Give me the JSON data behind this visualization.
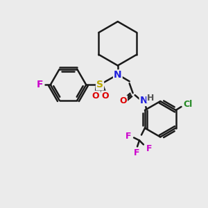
{
  "background_color": "#ebebeb",
  "bond_color": "#1a1a1a",
  "bond_width": 1.8,
  "atom_colors": {
    "N": "#2020dd",
    "O": "#dd0000",
    "F": "#cc00cc",
    "Cl": "#228822",
    "S": "#bbaa00",
    "H": "#555555",
    "C": "#1a1a1a"
  },
  "figsize": [
    3.0,
    3.0
  ],
  "dpi": 100
}
